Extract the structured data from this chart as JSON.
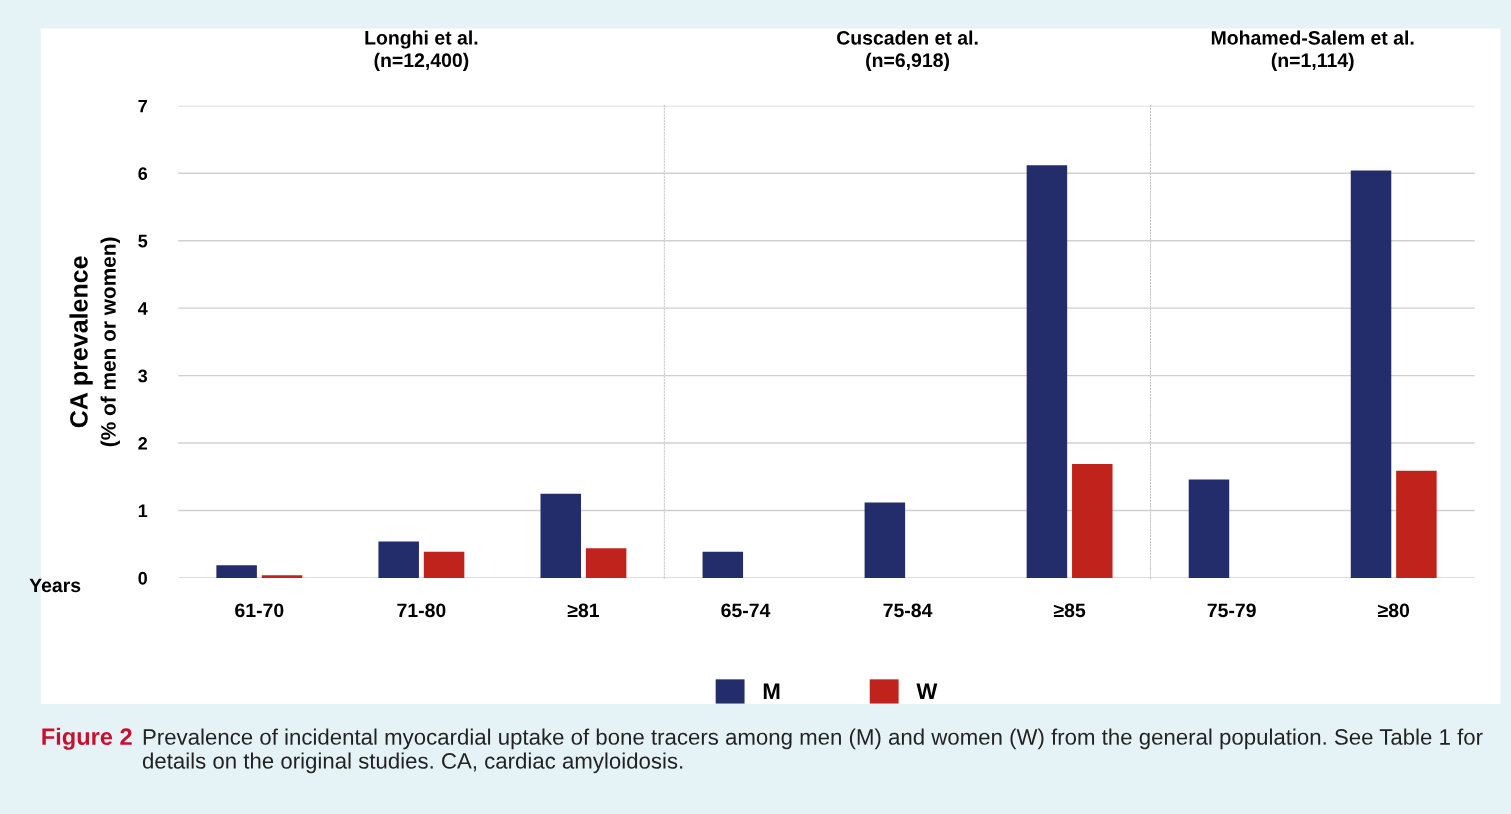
{
  "chart_data": [
    {
      "type": "bar",
      "title": "Longhi et al.\n(n=12,400)",
      "categories": [
        "61-70",
        "71-80",
        "≥81"
      ],
      "xlabel": "Years",
      "ylabel": "CA prevalence\n(% of men or women)",
      "series": [
        {
          "name": "M",
          "color": "#232d6b",
          "values": [
            0.19,
            0.54,
            1.25
          ]
        },
        {
          "name": "W",
          "color": "#c0231b",
          "values": [
            0.04,
            0.39,
            0.44
          ]
        }
      ],
      "ylim": [
        0,
        7
      ],
      "yticks": [
        0,
        1,
        2,
        3,
        4,
        5,
        6,
        7
      ],
      "grid": "y",
      "legend": "bottom"
    },
    {
      "type": "bar",
      "title": "Cuscaden et al.\n(n=6,918)",
      "categories": [
        "65-74",
        "75-84",
        "≥85"
      ],
      "series": [
        {
          "color": "#232d6b",
          "values": [
            0.39,
            1.12,
            6.12
          ]
        },
        {
          "color": "#c0231b",
          "values": [
            null,
            null,
            1.69
          ]
        }
      ],
      "ylim": [
        0,
        7
      ],
      "yticks": [
        0,
        1,
        2,
        3,
        4,
        5,
        6,
        7
      ],
      "grid": "y",
      "tick_labels": "x"
    },
    {
      "type": "bar",
      "title": "Mohamed-Salem et al.\n(n=1,114)",
      "categories": [
        "75-79",
        "≥80"
      ],
      "series": [
        {
          "color": "#232d6b",
          "values": [
            1.46,
            6.04
          ]
        },
        {
          "color": "#c0231b",
          "values": [
            null,
            1.59
          ]
        }
      ],
      "ylim": [
        0,
        7
      ],
      "yticks": [
        0,
        1,
        2,
        3,
        4,
        5,
        6,
        7
      ],
      "grid": "y",
      "tick_labels": "x",
      "annotations": [
        "Figure 2",
        "Prevalence of incidental myocardial uptake of bone tracers among men (M) and women (W) from the general population. See Table 1 for details on the original studies. CA, cardiac amyloidosis."
      ]
    }
  ]
}
